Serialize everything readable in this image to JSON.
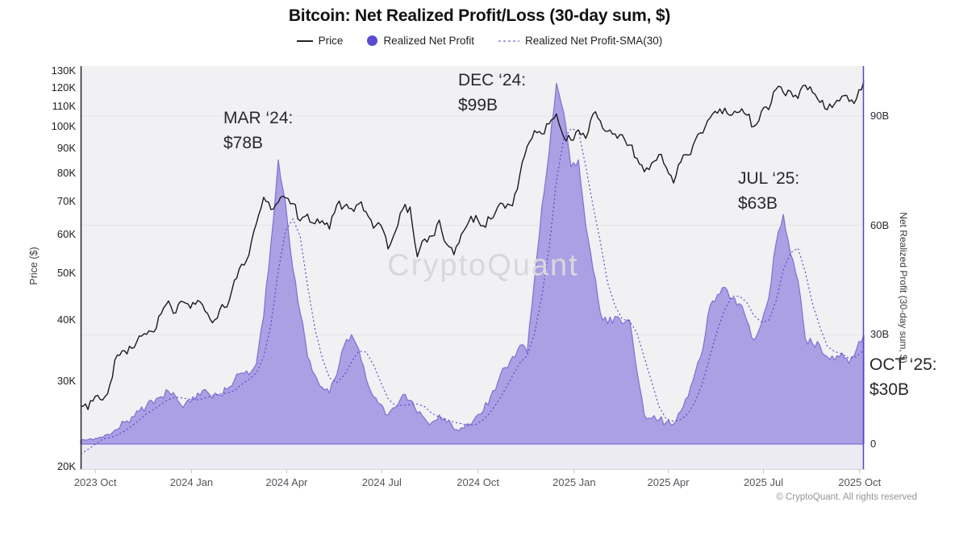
{
  "title": "Bitcoin: Net Realized Profit/Loss (30-day sum, $)",
  "legend": [
    {
      "label": "Price"
    },
    {
      "label": "Realized Net Profit"
    },
    {
      "label": "Realized Net Profit-SMA(30)"
    }
  ],
  "annotations": [
    {
      "label": "MAR ‘24:",
      "value": "$78B"
    },
    {
      "label": "DEC ‘24:",
      "value": "$99B"
    },
    {
      "label": "JUL ‘25:",
      "value": "$63B"
    },
    {
      "label": "OCT ‘25:",
      "value": "$30B"
    }
  ],
  "watermark": "CryptoQuant",
  "footer": "© CryptoQuant. All rights reserved",
  "colors": {
    "price_line": "#1a1a1e",
    "area_fill": "#aba0e4",
    "area_edge": "#7e70d2",
    "sma_line": "#4f43c6",
    "right_axis": "#5347c8",
    "left_axis": "#232327",
    "legend_dot": "#5a4bd1",
    "plot_bg": "#f1f0f2",
    "below_zero_band": "#eceaf3",
    "gridline": "#e6e3e8",
    "x_axis_line": "#d6d4d9"
  },
  "chart_data": {
    "type": "line",
    "title": "Bitcoin: Net Realized Profit/Loss (30-day sum, $)",
    "x": {
      "start": "2023-09-17",
      "end": "2025-10-05",
      "step_days": 7,
      "points": 108,
      "ticks": [
        {
          "date": "2023-10-01",
          "label": "2023 Oct"
        },
        {
          "date": "2024-01-01",
          "label": "2024 Jan"
        },
        {
          "date": "2024-04-01",
          "label": "2024 Apr"
        },
        {
          "date": "2024-07-01",
          "label": "2024 Jul"
        },
        {
          "date": "2024-10-01",
          "label": "2024 Oct"
        },
        {
          "date": "2025-01-01",
          "label": "2025 Jan"
        },
        {
          "date": "2025-04-01",
          "label": "2025 Apr"
        },
        {
          "date": "2025-07-01",
          "label": "2025 Jul"
        },
        {
          "date": "2025-10-01",
          "label": "2025 Oct"
        }
      ]
    },
    "axes": {
      "left": {
        "title": "Price ($)",
        "scale": "log",
        "range_usd": [
          20000,
          130000
        ],
        "ticks": [
          {
            "label": "130K",
            "value": 130000
          },
          {
            "label": "120K",
            "value": 120000
          },
          {
            "label": "110K",
            "value": 110000
          },
          {
            "label": "100K",
            "value": 100000
          },
          {
            "label": "90K",
            "value": 90000
          },
          {
            "label": "80K",
            "value": 80000
          },
          {
            "label": "70K",
            "value": 70000
          },
          {
            "label": "60K",
            "value": 60000
          },
          {
            "label": "50K",
            "value": 50000
          },
          {
            "label": "40K",
            "value": 40000
          },
          {
            "label": "30K",
            "value": 30000
          },
          {
            "label": "20K",
            "value": 20000
          }
        ]
      },
      "right": {
        "title": "Net Realized Profit (30-day sum, $)",
        "scale": "linear",
        "range_billion_usd": [
          -7,
          103
        ],
        "ticks": [
          {
            "label": "90B",
            "value": 90
          },
          {
            "label": "60B",
            "value": 60
          },
          {
            "label": "30B",
            "value": 30
          },
          {
            "label": "0",
            "value": 0
          }
        ]
      }
    },
    "series": [
      {
        "name": "Price",
        "axis": "left",
        "type": "line",
        "unit": "thousand USD",
        "values": [
          26.6,
          26.2,
          27.9,
          27.4,
          29.5,
          33.9,
          34.6,
          35.0,
          37.1,
          37.4,
          37.8,
          41.2,
          43.8,
          41.4,
          43.6,
          42.3,
          43.9,
          41.7,
          39.5,
          42.0,
          42.6,
          48.3,
          52.1,
          54.5,
          63.1,
          71.5,
          67.5,
          69.9,
          71.3,
          69.4,
          64.0,
          66.0,
          63.1,
          64.0,
          61.5,
          69.0,
          68.5,
          67.8,
          69.3,
          66.7,
          61.8,
          62.7,
          56.0,
          60.8,
          67.5,
          68.3,
          54.0,
          58.7,
          59.5,
          64.2,
          57.3,
          54.5,
          60.0,
          63.6,
          65.6,
          62.5,
          64.5,
          68.4,
          67.9,
          68.7,
          79.5,
          91.0,
          98.0,
          96.5,
          101.2,
          106.1,
          95.1,
          93.7,
          98.3,
          94.5,
          106.0,
          102.6,
          97.7,
          96.5,
          96.1,
          91.5,
          86.0,
          80.7,
          84.0,
          87.5,
          82.4,
          76.5,
          84.5,
          87.3,
          94.0,
          96.9,
          104.1,
          106.4,
          109.0,
          105.6,
          107.0,
          105.5,
          100.0,
          107.3,
          108.2,
          119.1,
          117.3,
          118.0,
          114.1,
          121.5,
          117.4,
          112.0,
          108.2,
          111.2,
          115.3,
          112.5,
          114.0,
          124.0
        ]
      },
      {
        "name": "Realized Net Profit",
        "axis": "right",
        "type": "area",
        "unit": "billion USD",
        "values": [
          1.0,
          1.2,
          1.5,
          1.8,
          2.5,
          4.0,
          6.0,
          7.5,
          9.0,
          10.5,
          11.0,
          13.0,
          14.5,
          13.0,
          10.0,
          11.5,
          14.0,
          15.0,
          12.5,
          13.5,
          15.0,
          17.5,
          19.5,
          19.0,
          22.0,
          35.0,
          55.0,
          78.0,
          66.0,
          48.0,
          36.0,
          24.0,
          19.0,
          15.5,
          14.0,
          19.0,
          27.0,
          30.0,
          26.0,
          18.0,
          13.0,
          11.0,
          8.0,
          10.0,
          13.5,
          12.0,
          8.5,
          7.0,
          6.0,
          8.0,
          6.0,
          4.0,
          4.5,
          5.5,
          7.5,
          9.0,
          13.0,
          17.0,
          21.0,
          24.0,
          27.0,
          25.0,
          45.0,
          65.0,
          80.0,
          99.0,
          91.0,
          76.0,
          78.0,
          60.0,
          48.0,
          36.0,
          33.0,
          35.0,
          33.0,
          34.0,
          20.0,
          8.0,
          7.0,
          6.5,
          6.0,
          5.5,
          9.0,
          13.0,
          20.0,
          26.0,
          38.0,
          41.0,
          43.0,
          40.0,
          38.5,
          34.0,
          28.5,
          33.0,
          40.0,
          55.0,
          63.0,
          52.0,
          45.0,
          29.0,
          27.5,
          27.0,
          24.0,
          23.0,
          25.0,
          22.0,
          26.0,
          30.0
        ]
      },
      {
        "name": "Realized Net Profit-SMA(30)",
        "axis": "right",
        "type": "dashed-line",
        "unit": "billion USD",
        "derived_from": "Realized Net Profit",
        "sma_window_days": 30
      }
    ],
    "peaks": [
      {
        "date": "2024-03",
        "value_billion": 78
      },
      {
        "date": "2024-12",
        "value_billion": 99
      },
      {
        "date": "2025-07",
        "value_billion": 63
      },
      {
        "date": "2025-10",
        "value_billion": 30
      }
    ]
  }
}
